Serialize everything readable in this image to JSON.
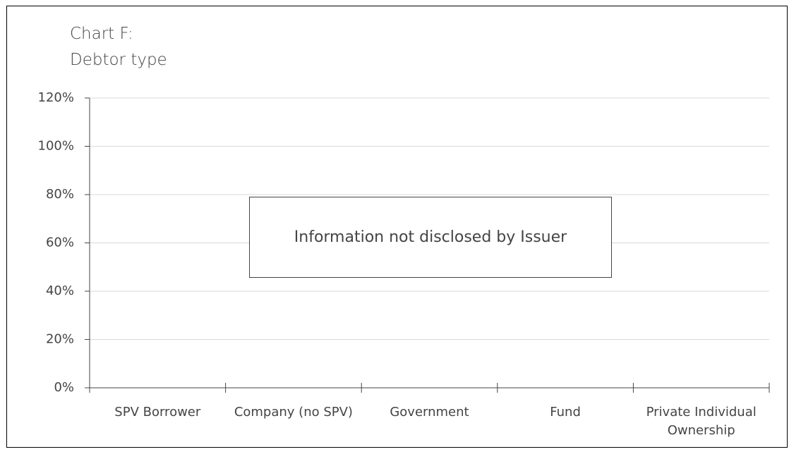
{
  "chart_data": {
    "type": "bar",
    "title": "Chart F:\nDebtor type",
    "categories": [
      "SPV Borrower",
      "Company (no SPV)",
      "Government",
      "Fund",
      "Private Individual Ownership"
    ],
    "ylim": [
      0,
      120
    ],
    "yticks": [
      {
        "value": 0,
        "label": "0%"
      },
      {
        "value": 20,
        "label": "20%"
      },
      {
        "value": 40,
        "label": "40%"
      },
      {
        "value": 60,
        "label": "60%"
      },
      {
        "value": 80,
        "label": "80%"
      },
      {
        "value": 100,
        "label": "100%"
      },
      {
        "value": 120,
        "label": "120%"
      }
    ],
    "grid": true,
    "annotation": "Information not disclosed by Issuer"
  }
}
